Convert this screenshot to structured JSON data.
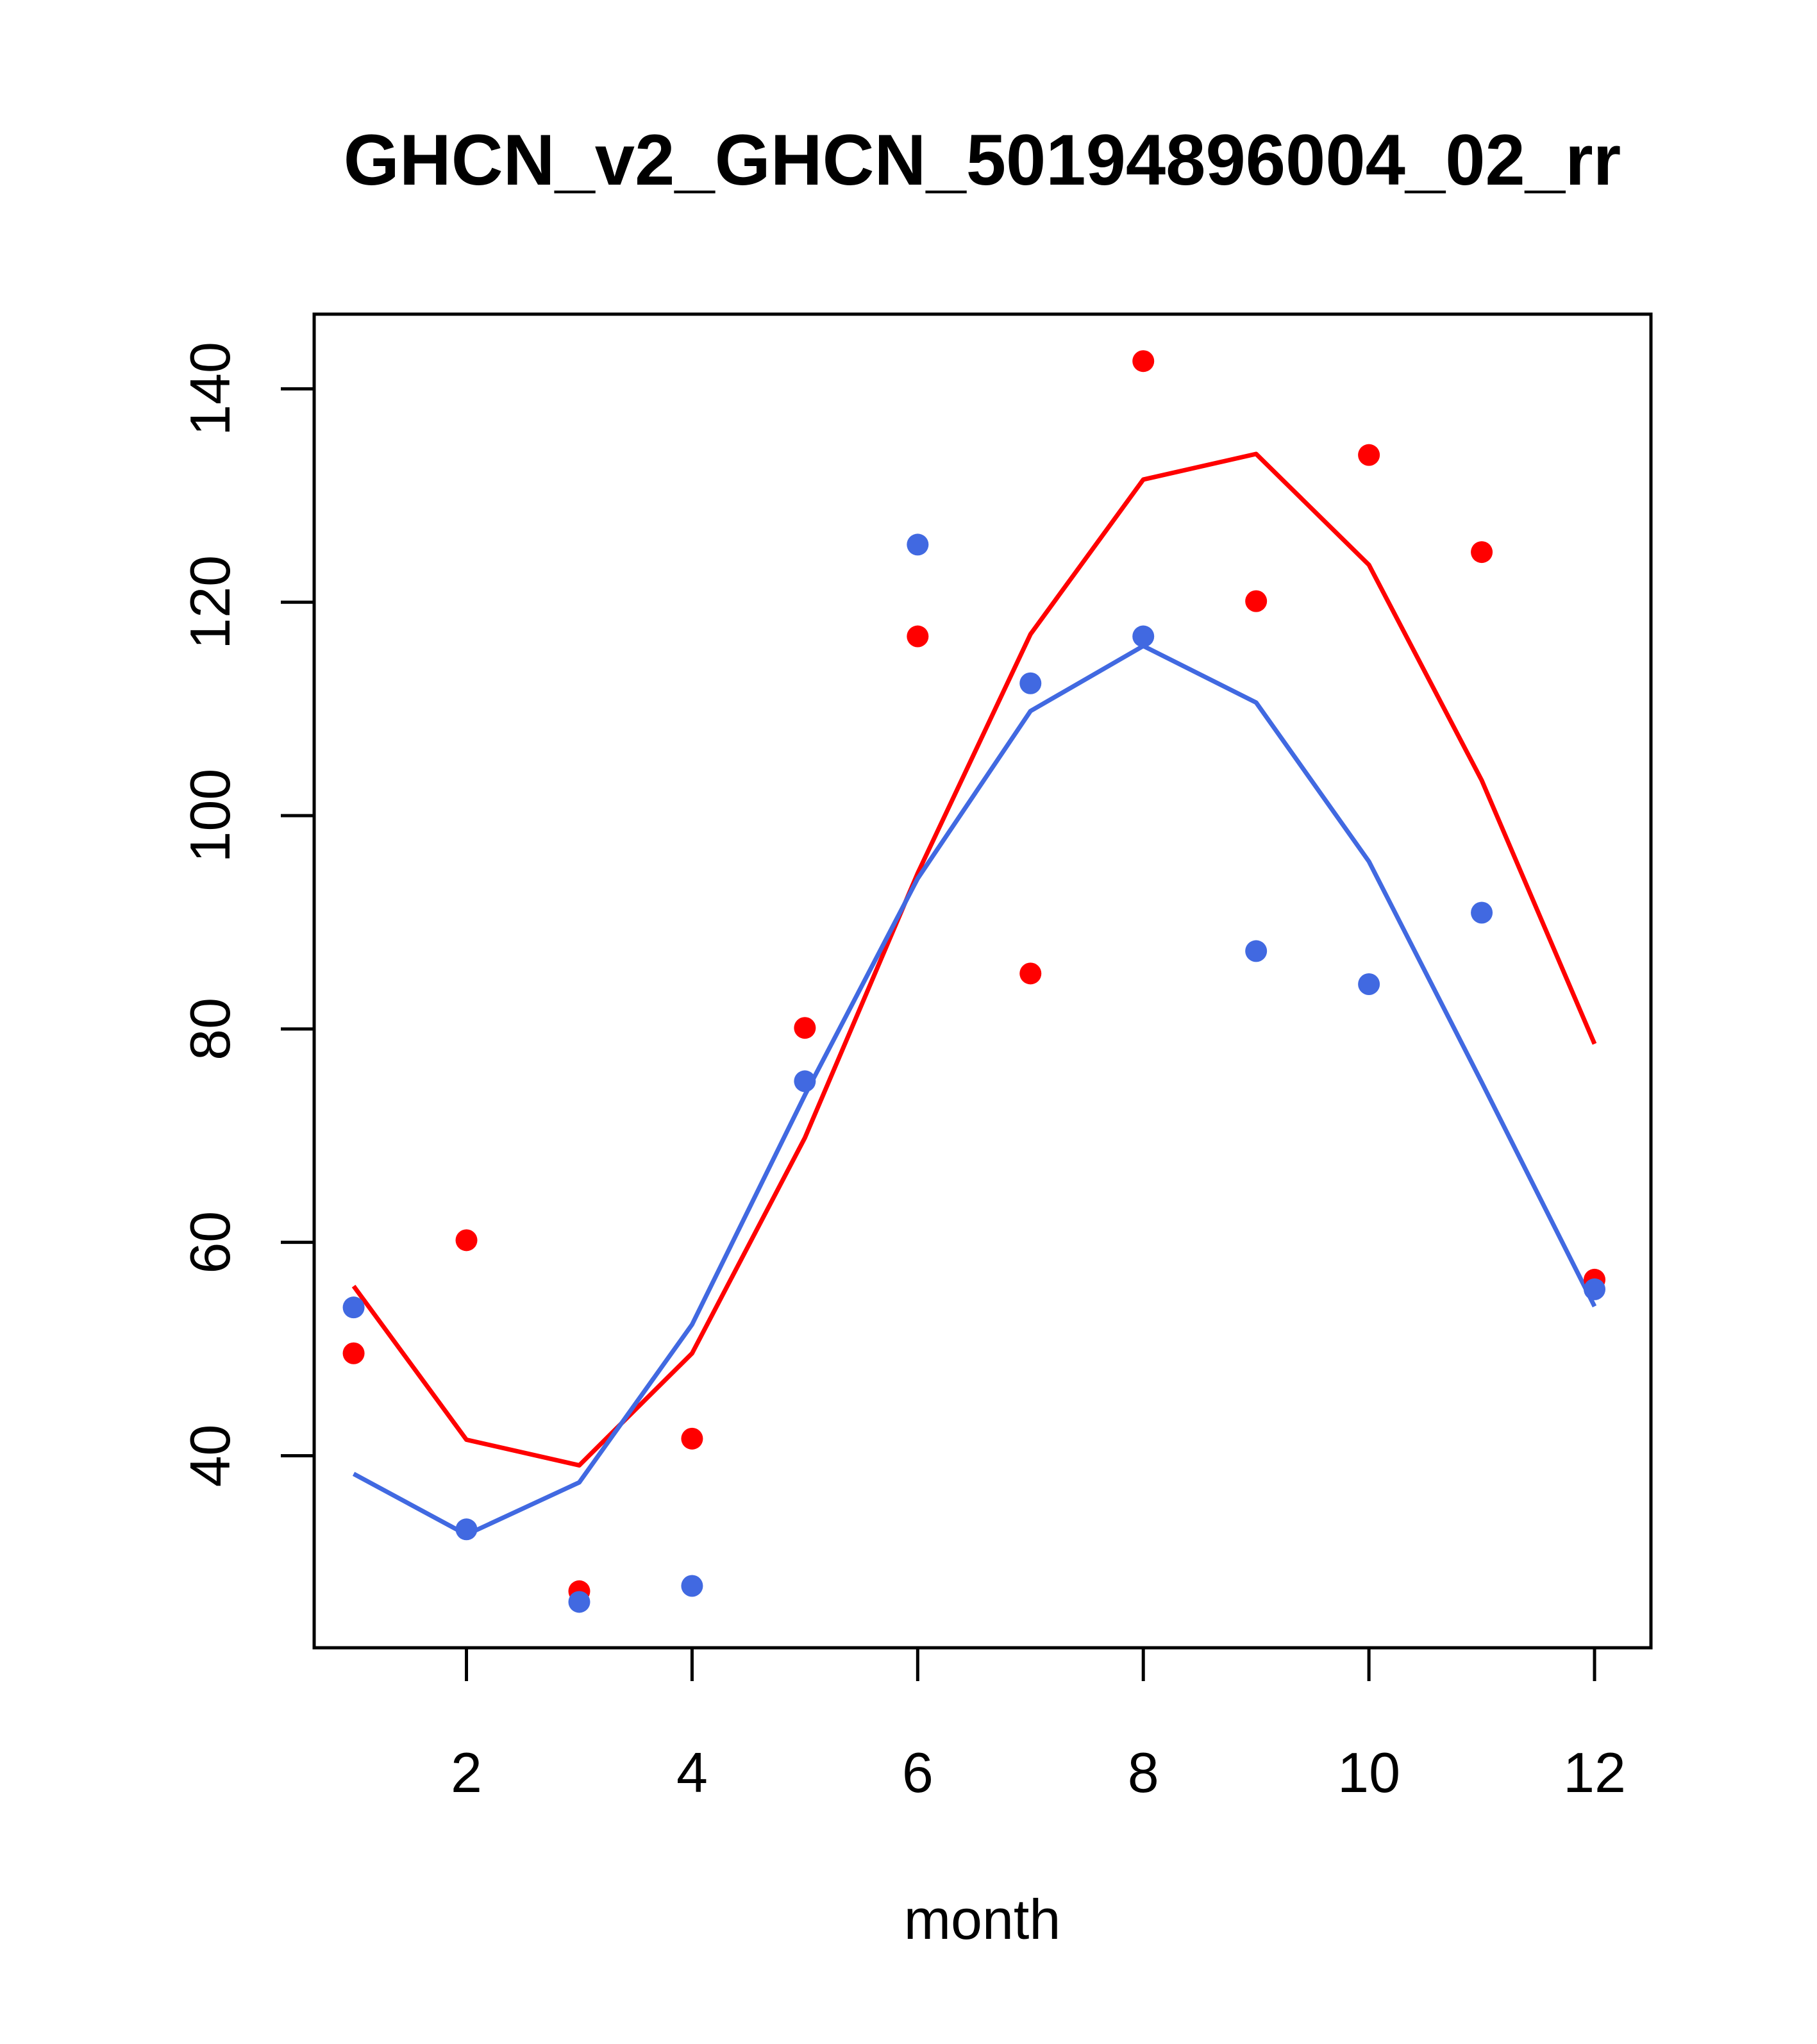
{
  "chart_data": {
    "type": "scatter",
    "title": "GHCN_v2_GHCN_50194896004_02_rr",
    "xlabel": "month",
    "ylabel": "",
    "xlim": [
      0.65,
      12.5
    ],
    "ylim": [
      22,
      147
    ],
    "xticks": [
      2,
      4,
      6,
      8,
      10,
      12
    ],
    "yticks": [
      40,
      60,
      80,
      100,
      120,
      140
    ],
    "grid": false,
    "legend": "none",
    "x": [
      1,
      2,
      3,
      4,
      5,
      6,
      7,
      8,
      9,
      10,
      11,
      12
    ],
    "series": [
      {
        "color": "#ff0000",
        "points": [
          49.6,
          60.2,
          27.3,
          41.6,
          80.1,
          116.8,
          85.2,
          142.6,
          120.1,
          133.8,
          124.7,
          56.5
        ],
        "line": [
          55.9,
          41.5,
          39.1,
          49.6,
          69.8,
          94.6,
          117.0,
          131.5,
          133.9,
          123.5,
          103.3,
          78.6
        ]
      },
      {
        "color": "#4169e1",
        "points": [
          53.9,
          33.1,
          26.3,
          27.8,
          75.1,
          125.4,
          112.4,
          116.8,
          87.3,
          84.2,
          90.9,
          55.6
        ],
        "line": [
          38.3,
          32.6,
          37.5,
          52.3,
          73.8,
          94.1,
          109.8,
          115.9,
          110.6,
          95.7,
          75.0,
          54.0
        ]
      }
    ]
  }
}
